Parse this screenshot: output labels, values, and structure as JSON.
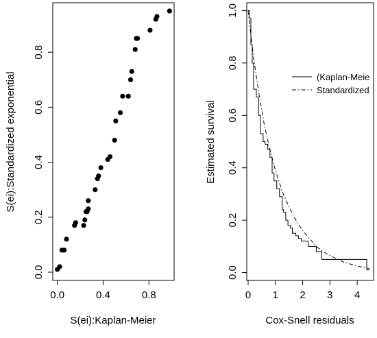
{
  "chart_data": [
    {
      "type": "scatter",
      "xlabel": "S(ei):Kaplan-Meier",
      "ylabel": "S(ei):Standardized exponential",
      "xlim": [
        -0.04,
        1.02
      ],
      "ylim": [
        -0.03,
        0.98
      ],
      "xticks": [
        0.0,
        0.4,
        0.8
      ],
      "xtick_labels": [
        "0.0",
        "0.4",
        "0.8"
      ],
      "yticks": [
        0.0,
        0.2,
        0.4,
        0.6,
        0.8
      ],
      "ytick_labels": [
        "0.0",
        "0.2",
        "0.4",
        "0.6",
        "0.8"
      ],
      "grid": false,
      "x": [
        0.0,
        0.02,
        0.04,
        0.06,
        0.08,
        0.15,
        0.16,
        0.23,
        0.24,
        0.25,
        0.26,
        0.27,
        0.27,
        0.33,
        0.35,
        0.36,
        0.38,
        0.44,
        0.46,
        0.5,
        0.51,
        0.55,
        0.57,
        0.62,
        0.64,
        0.65,
        0.68,
        0.69,
        0.7,
        0.81,
        0.86,
        0.87,
        0.98
      ],
      "y": [
        0.01,
        0.02,
        0.08,
        0.08,
        0.12,
        0.17,
        0.18,
        0.17,
        0.19,
        0.22,
        0.22,
        0.23,
        0.26,
        0.3,
        0.34,
        0.35,
        0.38,
        0.41,
        0.42,
        0.48,
        0.55,
        0.58,
        0.64,
        0.64,
        0.7,
        0.73,
        0.81,
        0.85,
        0.85,
        0.88,
        0.92,
        0.93,
        0.95
      ]
    },
    {
      "type": "line",
      "xlabel": "Cox-Snell residuals",
      "ylabel": "Estimated survival",
      "xlim": [
        -0.05,
        4.6
      ],
      "ylim": [
        -0.03,
        1.03
      ],
      "xticks": [
        0,
        1,
        2,
        3,
        4
      ],
      "xtick_labels": [
        "0",
        "1",
        "2",
        "3",
        "4"
      ],
      "yticks": [
        0.0,
        0.2,
        0.4,
        0.6,
        0.8,
        1.0
      ],
      "ytick_labels": [
        "0.0",
        "0.2",
        "0.4",
        "0.6",
        "0.8",
        "1.0"
      ],
      "grid": false,
      "legend": {
        "position": "top-right",
        "entries": [
          "(Kaplan-Meie",
          "Standardized"
        ]
      },
      "series": [
        {
          "name": "(Kaplan-Meie",
          "style": "solid-step",
          "x": [
            0.0,
            0.05,
            0.1,
            0.15,
            0.2,
            0.26,
            0.3,
            0.38,
            0.45,
            0.55,
            0.62,
            0.72,
            0.8,
            0.88,
            0.95,
            1.05,
            1.15,
            1.25,
            1.3,
            1.38,
            1.46,
            1.55,
            1.62,
            1.75,
            1.85,
            1.95,
            2.05,
            2.2,
            2.5,
            2.7,
            4.35,
            4.45
          ],
          "y": [
            1.0,
            0.97,
            0.87,
            0.8,
            0.7,
            0.7,
            0.67,
            0.6,
            0.53,
            0.5,
            0.49,
            0.47,
            0.44,
            0.38,
            0.35,
            0.32,
            0.29,
            0.24,
            0.23,
            0.2,
            0.18,
            0.17,
            0.15,
            0.14,
            0.13,
            0.12,
            0.12,
            0.1,
            0.08,
            0.05,
            0.01,
            0.01
          ]
        },
        {
          "name": "Standardized",
          "style": "dashdot",
          "x": [
            0,
            0.2,
            0.4,
            0.6,
            0.8,
            1.0,
            1.25,
            1.5,
            1.75,
            2.0,
            2.25,
            2.5,
            2.75,
            3.0,
            3.5,
            4.0,
            4.45
          ],
          "y": [
            1.0,
            0.82,
            0.68,
            0.56,
            0.47,
            0.39,
            0.31,
            0.25,
            0.2,
            0.16,
            0.13,
            0.1,
            0.08,
            0.065,
            0.04,
            0.025,
            0.015
          ]
        }
      ]
    }
  ]
}
